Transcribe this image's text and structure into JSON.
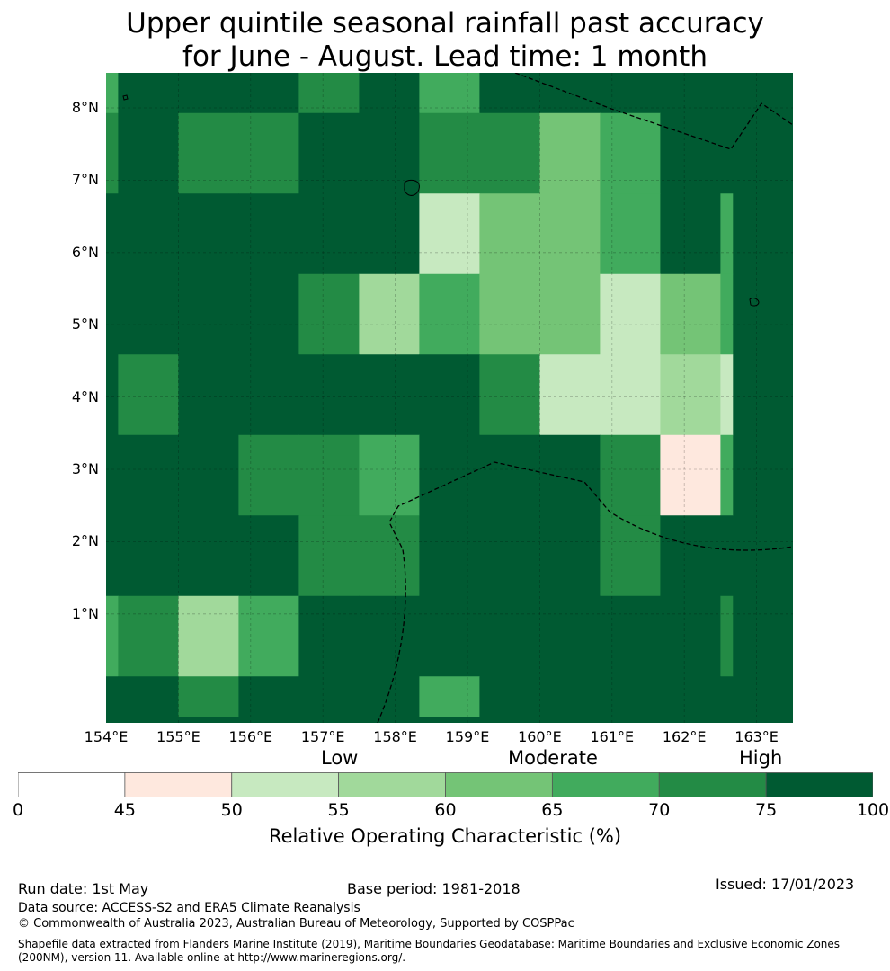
{
  "title_line1": "Upper quintile seasonal rainfall past accuracy",
  "title_line2": "for June - August. Lead time: 1 month",
  "map": {
    "lat_labels": [
      "8°N",
      "7°N",
      "6°N",
      "5°N",
      "4°N",
      "3°N",
      "2°N",
      "1°N"
    ],
    "lon_labels": [
      "154°E",
      "155°E",
      "156°E",
      "157°E",
      "158°E",
      "159°E",
      "160°E",
      "161°E",
      "162°E",
      "163°E"
    ],
    "grid_columns": 12,
    "grid_rows": 9,
    "grid_values": [
      [
        65,
        75,
        80,
        75,
        70,
        80,
        65,
        80,
        80,
        80,
        80,
        80
      ],
      [
        70,
        75,
        70,
        70,
        75,
        75,
        70,
        70,
        60,
        65,
        80,
        80
      ],
      [
        80,
        80,
        75,
        80,
        75,
        75,
        54,
        60,
        60,
        65,
        75,
        65
      ],
      [
        80,
        80,
        80,
        75,
        70,
        57,
        65,
        60,
        60,
        54,
        60,
        65
      ],
      [
        80,
        70,
        80,
        75,
        80,
        80,
        80,
        70,
        54,
        54,
        57,
        54
      ],
      [
        80,
        75,
        80,
        70,
        70,
        65,
        80,
        75,
        80,
        70,
        47,
        65
      ],
      [
        80,
        80,
        80,
        75,
        70,
        70,
        80,
        75,
        80,
        70,
        75,
        75
      ],
      [
        65,
        70,
        57,
        65,
        75,
        75,
        75,
        80,
        80,
        80,
        80,
        70
      ],
      [
        80,
        80,
        70,
        75,
        75,
        75,
        65,
        75,
        80,
        80,
        80,
        80
      ]
    ],
    "grid_row_heights": [
      0.5,
      1,
      1,
      1,
      1,
      1,
      1,
      1,
      0.5
    ],
    "grid_col_widths": [
      0.2,
      1,
      1,
      1,
      1,
      1,
      1,
      1,
      1,
      1,
      1,
      0.2
    ],
    "lower_region_value": 80
  },
  "colorbar": {
    "category_labels": [
      "Low",
      "Moderate",
      "High"
    ],
    "bounds": [
      "0",
      "45",
      "50",
      "55",
      "60",
      "65",
      "70",
      "75",
      "100"
    ],
    "colors": [
      "#ffffff",
      "#fee8de",
      "#c7e9c0",
      "#a1d99b",
      "#74c476",
      "#41ab5d",
      "#238b45",
      "#005a32"
    ],
    "label": "Relative Operating Characteristic (%)"
  },
  "footer": {
    "run_date": "Run date: 1st May",
    "base_period": "Base period: 1981-2018",
    "issued": "Issued: 17/01/2023",
    "data_source": "Data source: ACCESS-S2 and ERA5 Climate Reanalysis",
    "copyright": "© Commonwealth of Australia 2023, Australian Bureau of Meteorology, Supported by COSPPac",
    "shapefile_line1": "Shapefile data extracted from Flanders Marine Institute (2019), Maritime Boundaries Geodatabase: Maritime Boundaries and Exclusive Economic Zones",
    "shapefile_line2": "(200NM), version 11. Available online at http://www.marineregions.org/."
  }
}
